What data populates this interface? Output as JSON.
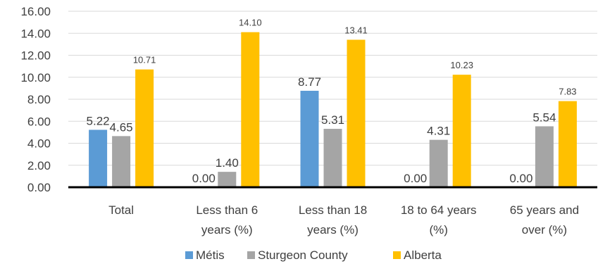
{
  "chart_data": {
    "type": "bar",
    "title": "",
    "xlabel": "",
    "ylabel": "",
    "ylim": [
      0,
      16
    ],
    "yticks": [
      "0.00",
      "2.00",
      "4.00",
      "6.00",
      "8.00",
      "10.00",
      "12.00",
      "14.00",
      "16.00"
    ],
    "grid": true,
    "legend_position": "bottom",
    "categories": [
      [
        "Total"
      ],
      [
        "Less than 6",
        "years (%)"
      ],
      [
        "Less than 18",
        "years (%)"
      ],
      [
        "18 to 64 years",
        "(%)"
      ],
      [
        "65 years and",
        "over (%)"
      ]
    ],
    "series": [
      {
        "name": "Métis",
        "color": "#5b9bd5",
        "values": [
          5.22,
          0.0,
          8.77,
          0.0,
          0.0
        ],
        "labels": [
          "5.22",
          "0.00",
          "8.77",
          "0.00",
          "0.00"
        ]
      },
      {
        "name": "Sturgeon County",
        "color": "#a5a5a5",
        "values": [
          4.65,
          1.4,
          5.31,
          4.31,
          5.54
        ],
        "labels": [
          "4.65",
          "1.40",
          "5.31",
          "4.31",
          "5.54"
        ]
      },
      {
        "name": "Alberta",
        "color": "#ffc000",
        "values": [
          10.71,
          14.1,
          13.41,
          10.23,
          7.83
        ],
        "labels": [
          "10.71",
          "14.10",
          "13.41",
          "10.23",
          "7.83"
        ]
      }
    ]
  }
}
